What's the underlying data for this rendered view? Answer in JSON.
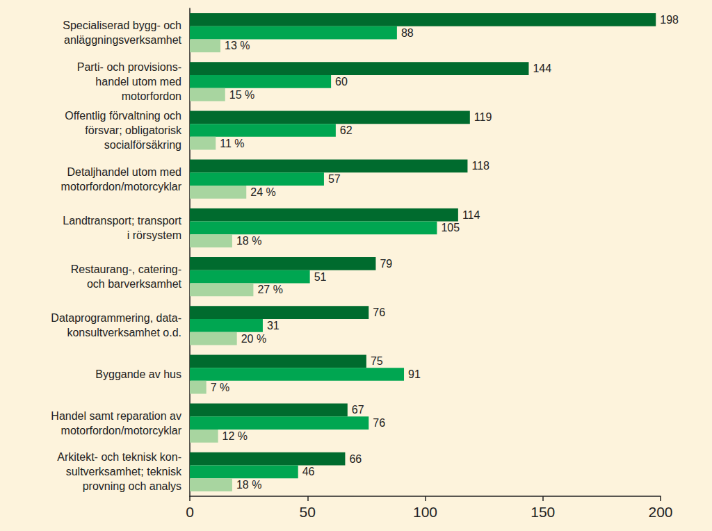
{
  "chart_data": {
    "type": "bar",
    "orientation": "horizontal",
    "categories": [
      "Specialiserad bygg- och\nanläggningsverksamhet",
      "Parti- och provisions-\nhandel utom med\nmotorfordon",
      "Offentlig förvaltning och\nförsvar; obligatorisk\nsocialförsäkring",
      "Detaljhandel utom med\nmotorfordon/motorcyklar",
      "Landtransport; transport\ni rörsystem",
      "Restaurang-, catering-\noch barverksamhet",
      "Dataprogrammering, data-\nkonsultverksamhet o.d.",
      "Byggande av hus",
      "Handel samt reparation av\nmotorfordon/motorcyklar",
      "Arkitekt- och teknisk kon-\nsultverksamhet; teknisk\nprovning och analys"
    ],
    "series": [
      {
        "color": "#006b2e",
        "values": [
          198,
          144,
          119,
          118,
          114,
          79,
          76,
          75,
          67,
          66
        ]
      },
      {
        "color": "#00a651",
        "values": [
          88,
          60,
          62,
          57,
          105,
          51,
          31,
          91,
          76,
          46
        ]
      },
      {
        "color": "#a8d5a0",
        "values": [
          13,
          15,
          11,
          24,
          18,
          27,
          20,
          7,
          12,
          18
        ],
        "value_labels": [
          "13 %",
          "15 %",
          "11 %",
          "24 %",
          "18 %",
          "27 %",
          "20 %",
          "7 %",
          "12 %",
          "18 %"
        ]
      }
    ],
    "xlim": [
      0,
      200
    ],
    "xticks": [
      0,
      50,
      100,
      150,
      200
    ],
    "grid": false,
    "data_labels": true
  }
}
